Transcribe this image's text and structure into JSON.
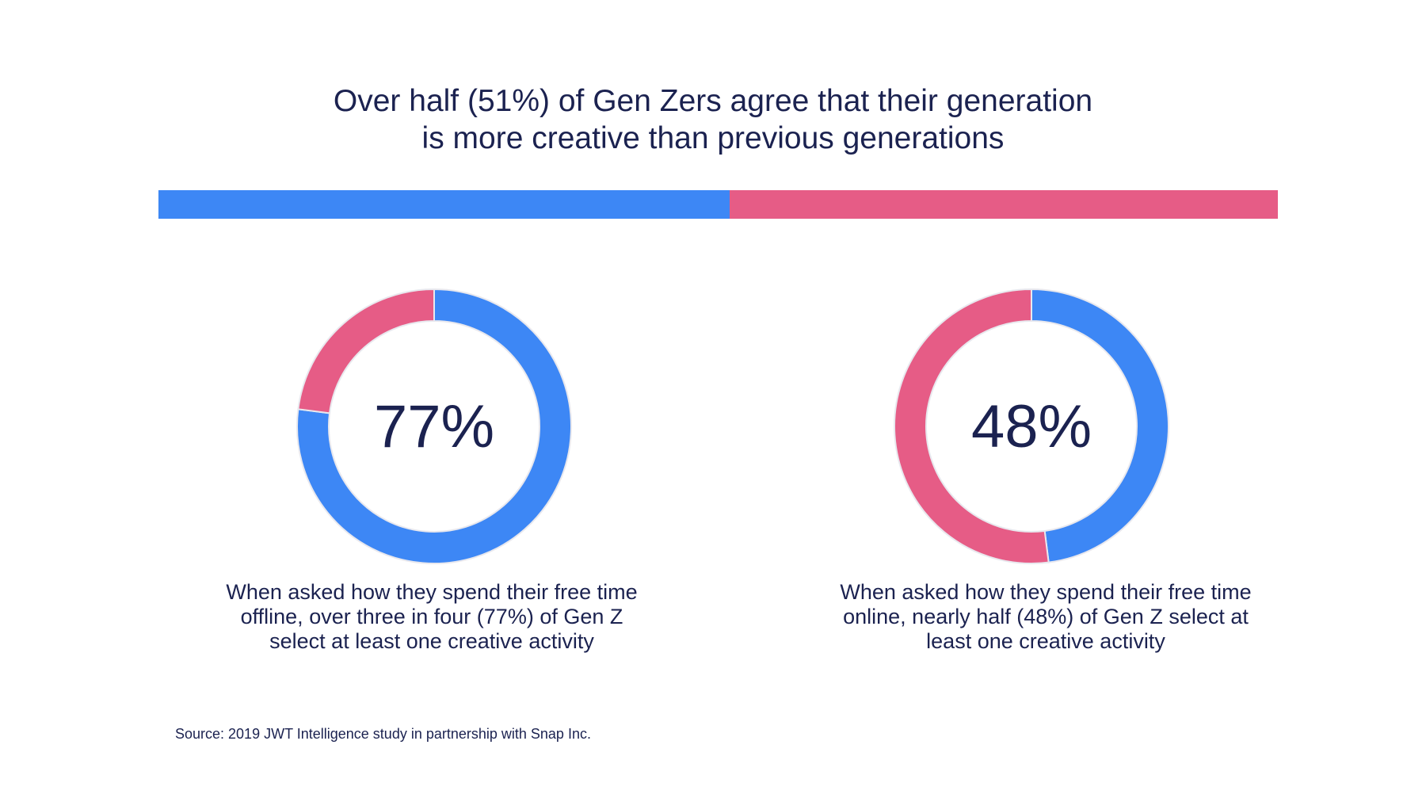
{
  "title_lines": [
    "Over half (51%) of Gen Zers agree that their generation",
    "is more creative than previous generations"
  ],
  "colors": {
    "primary": "#3d87f5",
    "secondary": "#e65c86",
    "text": "#1b2250"
  },
  "chart_data": [
    {
      "type": "bar",
      "orientation": "horizontal",
      "stacked": true,
      "values": [
        51,
        49
      ],
      "unit": "%",
      "colors": [
        "#3d87f5",
        "#e65c86"
      ]
    },
    {
      "type": "pie",
      "style": "donut",
      "center_label": "77%",
      "values": [
        77,
        23
      ],
      "colors": [
        "#3d87f5",
        "#e65c86"
      ],
      "caption_lines": [
        "When asked how they spend their free time",
        "offline, over three in four (77%) of Gen Z",
        "select at least one creative activity"
      ]
    },
    {
      "type": "pie",
      "style": "donut",
      "center_label": "48%",
      "values": [
        48,
        52
      ],
      "colors": [
        "#3d87f5",
        "#e65c86"
      ],
      "caption_lines": [
        "When asked how they spend their free time",
        "online, nearly half (48%) of Gen Z select at",
        "least one creative activity"
      ]
    }
  ],
  "source": "Source: 2019 JWT Intelligence study in partnership with Snap Inc."
}
